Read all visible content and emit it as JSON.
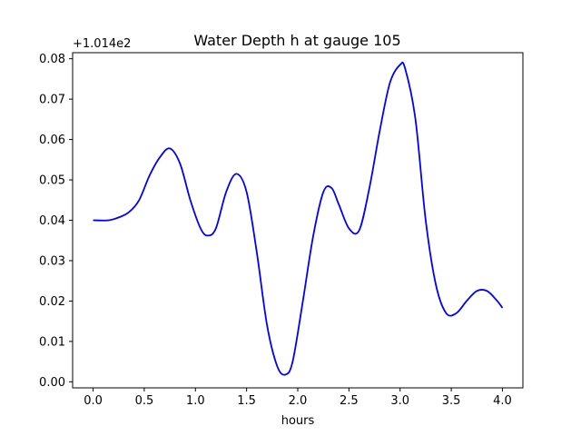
{
  "chart_data": {
    "type": "line",
    "title": "Water Depth h at gauge 105",
    "xlabel": "hours",
    "ylabel": "",
    "y_offset_label": "+1.014e2",
    "xlim": [
      -0.2,
      4.2
    ],
    "ylim": [
      -0.0015,
      0.0815
    ],
    "x_ticks": [
      0.0,
      0.5,
      1.0,
      1.5,
      2.0,
      2.5,
      3.0,
      3.5,
      4.0
    ],
    "x_tick_labels": [
      "0.0",
      "0.5",
      "1.0",
      "1.5",
      "2.0",
      "2.5",
      "3.0",
      "3.5",
      "4.0"
    ],
    "y_ticks": [
      0.0,
      0.01,
      0.02,
      0.03,
      0.04,
      0.05,
      0.06,
      0.07,
      0.08
    ],
    "y_tick_labels": [
      "0.00",
      "0.01",
      "0.02",
      "0.03",
      "0.04",
      "0.05",
      "0.06",
      "0.07",
      "0.08"
    ],
    "grid": false,
    "series": [
      {
        "color": "#0000ff",
        "x": [
          0.0,
          0.15,
          0.25,
          0.35,
          0.45,
          0.55,
          0.65,
          0.75,
          0.85,
          0.95,
          1.05,
          1.12,
          1.2,
          1.3,
          1.4,
          1.5,
          1.6,
          1.7,
          1.8,
          1.88,
          1.95,
          2.05,
          2.15,
          2.25,
          2.33,
          2.4,
          2.5,
          2.6,
          2.7,
          2.8,
          2.9,
          3.0,
          3.05,
          3.15,
          3.25,
          3.35,
          3.45,
          3.55,
          3.65,
          3.75,
          3.85,
          3.95,
          4.0
        ],
        "y": [
          0.04,
          0.04,
          0.0407,
          0.042,
          0.045,
          0.051,
          0.0555,
          0.0578,
          0.054,
          0.045,
          0.038,
          0.0362,
          0.038,
          0.047,
          0.0515,
          0.047,
          0.032,
          0.014,
          0.0038,
          0.0018,
          0.005,
          0.02,
          0.036,
          0.047,
          0.048,
          0.044,
          0.038,
          0.0375,
          0.048,
          0.062,
          0.074,
          0.0785,
          0.0775,
          0.065,
          0.04,
          0.024,
          0.017,
          0.017,
          0.02,
          0.0225,
          0.0225,
          0.02,
          0.0183
        ]
      }
    ]
  }
}
